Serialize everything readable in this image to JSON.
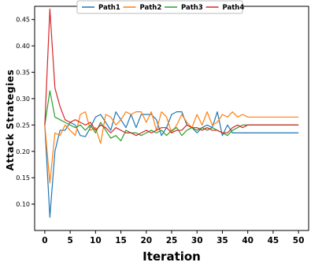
{
  "chart_data": {
    "type": "line",
    "title": "",
    "xlabel": "Iteration",
    "ylabel": "Attack Strategies",
    "xlim": [
      -2,
      52
    ],
    "ylim": [
      0.05,
      0.475
    ],
    "xticks": [
      0,
      5,
      10,
      15,
      20,
      25,
      30,
      35,
      40,
      45,
      50
    ],
    "yticks": [
      0.1,
      0.15,
      0.2,
      0.25,
      0.3,
      0.35,
      0.4,
      0.45
    ],
    "ytick_labels": [
      "0.10",
      "0.15",
      "0.20",
      "0.25",
      "0.30",
      "0.35",
      "0.40",
      "0.45"
    ],
    "grid": false,
    "legend_position": "top",
    "x": [
      0,
      1,
      2,
      3,
      4,
      5,
      6,
      7,
      8,
      9,
      10,
      11,
      12,
      13,
      14,
      15,
      16,
      17,
      18,
      19,
      20,
      21,
      22,
      23,
      24,
      25,
      26,
      27,
      28,
      29,
      30,
      31,
      32,
      33,
      34,
      35,
      36,
      37,
      38,
      39,
      40,
      41,
      42,
      43,
      44,
      45,
      46,
      47,
      48,
      49,
      50
    ],
    "series": [
      {
        "name": "Path1",
        "color": "#1f77b4",
        "values": [
          0.25,
          0.075,
          0.2,
          0.24,
          0.24,
          0.255,
          0.25,
          0.23,
          0.228,
          0.245,
          0.265,
          0.27,
          0.255,
          0.24,
          0.275,
          0.26,
          0.245,
          0.27,
          0.245,
          0.27,
          0.27,
          0.27,
          0.26,
          0.23,
          0.245,
          0.27,
          0.275,
          0.275,
          0.25,
          0.245,
          0.235,
          0.245,
          0.25,
          0.245,
          0.275,
          0.23,
          0.25,
          0.235,
          0.235,
          0.235,
          0.235,
          0.235,
          0.235,
          0.235,
          0.235,
          0.235,
          0.235,
          0.235,
          0.235,
          0.235,
          0.235
        ]
      },
      {
        "name": "Path2",
        "color": "#ff7f0e",
        "values": [
          0.25,
          0.14,
          0.235,
          0.23,
          0.25,
          0.24,
          0.23,
          0.27,
          0.275,
          0.24,
          0.245,
          0.215,
          0.27,
          0.265,
          0.25,
          0.26,
          0.275,
          0.27,
          0.275,
          0.275,
          0.255,
          0.275,
          0.24,
          0.275,
          0.265,
          0.235,
          0.25,
          0.27,
          0.255,
          0.245,
          0.27,
          0.25,
          0.275,
          0.25,
          0.255,
          0.27,
          0.265,
          0.275,
          0.265,
          0.27,
          0.265,
          0.265,
          0.265,
          0.265,
          0.265,
          0.265,
          0.265,
          0.265,
          0.265,
          0.265,
          0.265
        ]
      },
      {
        "name": "Path3",
        "color": "#2ca02c",
        "values": [
          0.25,
          0.315,
          0.265,
          0.26,
          0.255,
          0.25,
          0.245,
          0.25,
          0.24,
          0.25,
          0.235,
          0.255,
          0.24,
          0.225,
          0.23,
          0.22,
          0.24,
          0.235,
          0.235,
          0.23,
          0.235,
          0.24,
          0.235,
          0.24,
          0.23,
          0.24,
          0.245,
          0.23,
          0.24,
          0.245,
          0.24,
          0.245,
          0.24,
          0.245,
          0.24,
          0.235,
          0.23,
          0.24,
          0.245,
          0.25,
          0.25,
          0.25,
          0.25,
          0.25,
          0.25,
          0.25,
          0.25,
          0.25,
          0.25,
          0.25,
          0.25
        ]
      },
      {
        "name": "Path4",
        "color": "#d62728",
        "values": [
          0.25,
          0.47,
          0.32,
          0.285,
          0.26,
          0.255,
          0.26,
          0.255,
          0.25,
          0.255,
          0.24,
          0.25,
          0.245,
          0.235,
          0.245,
          0.24,
          0.235,
          0.235,
          0.23,
          0.235,
          0.24,
          0.235,
          0.24,
          0.245,
          0.245,
          0.235,
          0.24,
          0.24,
          0.25,
          0.245,
          0.245,
          0.24,
          0.245,
          0.24,
          0.24,
          0.235,
          0.235,
          0.245,
          0.25,
          0.245,
          0.25,
          0.25,
          0.25,
          0.25,
          0.25,
          0.25,
          0.25,
          0.25,
          0.25,
          0.25,
          0.25
        ]
      }
    ]
  }
}
